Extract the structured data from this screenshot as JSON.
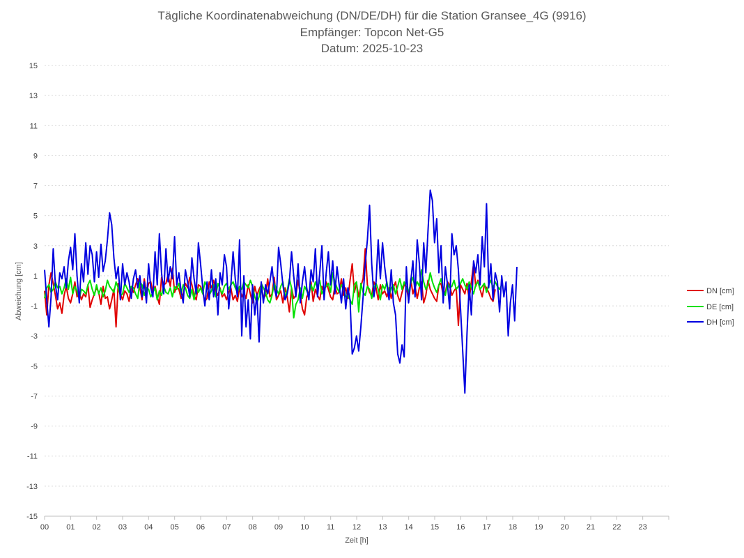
{
  "chart_data": {
    "type": "line",
    "title": [
      "Tägliche Koordinatenabweichung (DN/DE/DH) für die Station Gransee_4G (9916)",
      "Empfänger: Topcon Net-G5",
      "Datum: 2025-10-23"
    ],
    "xlabel": "Zeit [h]",
    "ylabel": "Abweichung [cm]",
    "xlim": [
      0,
      24
    ],
    "ylim": [
      -15,
      15
    ],
    "x_ticks": [
      "00",
      "01",
      "02",
      "03",
      "04",
      "05",
      "06",
      "07",
      "08",
      "09",
      "10",
      "11",
      "12",
      "13",
      "14",
      "15",
      "16",
      "17",
      "18",
      "19",
      "20",
      "21",
      "22",
      "23"
    ],
    "y_ticks": [
      15,
      13,
      11,
      9,
      7,
      5,
      3,
      1,
      -1,
      -3,
      -5,
      -7,
      -9,
      -11,
      -13,
      -15
    ],
    "legend_position": "right",
    "grid": true,
    "sample_interval_h": 0.0833,
    "series": [
      {
        "name": "DN [cm]",
        "color": "#e00000",
        "values": [
          0.0,
          -1.6,
          0.4,
          1.2,
          0.5,
          -0.3,
          -1.2,
          -0.8,
          -1.5,
          -0.3,
          0.3,
          -0.5,
          -0.8,
          -0.2,
          0.6,
          -0.4,
          -0.1,
          -0.6,
          -0.2,
          -0.4,
          0.4,
          -1.1,
          -0.6,
          -0.2,
          0.2,
          -0.1,
          -0.9,
          0.3,
          -0.5,
          -0.4,
          -1.2,
          -0.6,
          0.1,
          -2.4,
          0.5,
          -0.2,
          -0.6,
          0.0,
          -0.2,
          -0.7,
          0.3,
          -0.1,
          0.4,
          0.8,
          0.2,
          -0.6,
          0.8,
          -0.2,
          0.5,
          0.6,
          -0.1,
          0.3,
          -0.4,
          -0.9,
          0.9,
          0.4,
          0.5,
          1.1,
          0.3,
          1.5,
          -0.1,
          0.3,
          0.1,
          -0.5,
          -0.2,
          0.5,
          0.2,
          0.9,
          0.4,
          -0.3,
          -0.6,
          0.4,
          0.3,
          -0.1,
          -0.7,
          -0.5,
          0.6,
          0.2,
          0.7,
          0.0,
          -0.3,
          0.2,
          -0.4,
          -0.2,
          -0.6,
          -0.1,
          0.2,
          -0.6,
          -0.3,
          -0.7,
          0.2,
          -0.4,
          -0.1,
          -0.5,
          0.4,
          -0.2,
          -0.8,
          0.3,
          -0.3,
          0.1,
          0.4,
          -0.5,
          -0.3,
          0.8,
          -0.4,
          -0.2,
          0.9,
          -0.6,
          -0.3,
          0.0,
          -0.8,
          0.2,
          -0.4,
          -1.4,
          0.2,
          -0.5,
          -0.3,
          0.7,
          -0.2,
          -1.2,
          -1.6,
          -0.4,
          -0.1,
          0.6,
          -0.7,
          0.1,
          -0.3,
          -0.6,
          0.3,
          -0.2,
          0.6,
          0.1,
          -0.4,
          -0.6,
          0.3,
          -0.2,
          -0.1,
          0.8,
          -0.3,
          0.2,
          -0.5,
          0.7,
          1.8,
          -0.1,
          0.5,
          -0.4,
          0.3,
          0.8,
          2.8,
          0.4,
          -0.1,
          -0.3,
          0.6,
          0.2,
          -0.6,
          0.4,
          -0.2,
          0.0,
          -0.4,
          0.2,
          -0.5,
          0.2,
          0.6,
          -0.3,
          -0.7,
          -0.1,
          0.4,
          0.3,
          -0.6,
          0.8,
          -0.2,
          0.3,
          -0.5,
          0.2,
          0.6,
          -0.8,
          -0.3,
          0.7,
          0.1,
          -0.2,
          -0.5,
          -0.7,
          0.4,
          0.5,
          -0.3,
          -0.1,
          0.6,
          0.4,
          -0.3,
          0.0,
          0.2,
          -2.3,
          0.4,
          0.1,
          -0.2,
          0.5,
          -0.6,
          0.6,
          1.8,
          0.3,
          0.7,
          0.1,
          -0.4,
          0.4,
          0.2,
          -0.1,
          -0.5,
          -0.7,
          0.1
        ]
      },
      {
        "name": "DE [cm]",
        "color": "#00e000",
        "values": [
          -0.5,
          0.2,
          0.4,
          -0.1,
          0.1,
          0.6,
          0.2,
          0.3,
          -0.2,
          0.2,
          0.8,
          0.1,
          0.9,
          -0.2,
          0.3,
          0.0,
          -0.5,
          0.1,
          0.0,
          -0.2,
          0.4,
          0.7,
          0.1,
          -0.3,
          0.4,
          -0.2,
          0.2,
          -0.4,
          0.0,
          0.7,
          0.3,
          0.1,
          -0.1,
          0.6,
          0.2,
          -0.3,
          -0.2,
          0.5,
          0.2,
          -0.1,
          0.3,
          0.2,
          -0.2,
          -0.5,
          0.6,
          0.4,
          -0.3,
          0.2,
          0.1,
          -0.4,
          -0.1,
          0.2,
          -0.6,
          0.0,
          -0.3,
          0.3,
          -0.1,
          -0.2,
          0.2,
          -0.4,
          0.3,
          0.1,
          0.5,
          -0.2,
          0.4,
          0.2,
          -0.3,
          -0.5,
          0.1,
          -0.6,
          0.3,
          -0.1,
          0.2,
          -0.2,
          0.6,
          0.3,
          -0.3,
          0.0,
          0.4,
          -0.4,
          0.5,
          0.1,
          -0.2,
          0.3,
          0.5,
          0.1,
          0.4,
          0.6,
          0.2,
          -0.1,
          0.3,
          0.1,
          0.6,
          0.4,
          0.2,
          0.7,
          0.3,
          -0.4,
          -0.8,
          -0.4,
          0.5,
          0.2,
          -0.1,
          -0.6,
          -0.8,
          -0.3,
          0.5,
          0.1,
          -0.2,
          0.3,
          0.6,
          -0.4,
          0.0,
          0.8,
          0.2,
          -1.8,
          -0.9,
          -0.6,
          0.2,
          -0.5,
          0.3,
          0.0,
          -0.3,
          0.4,
          0.0,
          0.6,
          0.2,
          0.7,
          -0.2,
          0.1,
          0.3,
          0.5,
          -0.1,
          1.2,
          0.6,
          0.2,
          -0.1,
          0.4,
          0.3,
          -0.4,
          -0.3,
          -0.6,
          -0.9,
          0.4,
          0.6,
          -1.4,
          0.5,
          -0.1,
          -0.3,
          0.3,
          0.1,
          -0.5,
          0.2,
          0.5,
          0.1,
          -0.6,
          0.4,
          0.1,
          0.6,
          -0.3,
          0.2,
          0.4,
          -0.2,
          0.3,
          0.8,
          0.1,
          0.6,
          0.2,
          -0.1,
          0.5,
          0.9,
          0.2,
          0.6,
          0.3,
          1.4,
          0.6,
          0.1,
          0.4,
          1.2,
          0.6,
          0.2,
          -0.1,
          0.4,
          0.8,
          0.1,
          -0.3,
          0.5,
          0.2,
          0.3,
          0.7,
          0.1,
          0.3,
          0.5,
          0.8,
          0.4,
          0.1,
          0.6,
          0.2,
          -0.2,
          0.4,
          0.6,
          0.1,
          0.3,
          0.5,
          -0.1,
          0.4,
          0.7,
          0.2,
          0.6,
          0.3,
          0.1,
          0.4
        ]
      },
      {
        "name": "DH [cm]",
        "color": "#0000e0",
        "values": [
          1.4,
          -0.6,
          -2.4,
          -0.4,
          2.8,
          0.4,
          -0.6,
          1.2,
          0.8,
          1.6,
          0.2,
          2.0,
          2.9,
          1.4,
          3.8,
          1.0,
          -0.8,
          1.8,
          0.6,
          3.2,
          1.1,
          3.0,
          2.4,
          0.6,
          2.6,
          0.9,
          3.1,
          1.3,
          2.0,
          3.4,
          5.2,
          4.4,
          2.2,
          0.8,
          1.6,
          -0.6,
          1.8,
          0.4,
          1.2,
          0.6,
          -0.5,
          0.8,
          1.4,
          0.2,
          1.0,
          -0.4,
          0.6,
          -0.8,
          1.8,
          0.2,
          -0.4,
          2.6,
          0.4,
          3.8,
          1.2,
          -0.2,
          2.8,
          0.6,
          1.6,
          0.8,
          3.6,
          0.4,
          1.2,
          0.0,
          -0.8,
          1.4,
          0.6,
          -0.4,
          2.2,
          0.8,
          -0.2,
          3.2,
          1.8,
          0.2,
          -1.0,
          0.6,
          -0.6,
          1.4,
          -0.4,
          0.8,
          -1.6,
          1.2,
          0.4,
          2.4,
          1.6,
          -1.2,
          0.4,
          2.6,
          0.8,
          -0.4,
          3.4,
          -3.0,
          1.0,
          -2.4,
          -0.6,
          -3.2,
          0.4,
          -1.6,
          -0.2,
          -3.4,
          0.6,
          -0.8,
          0.4,
          -0.2,
          0.6,
          1.6,
          0.2,
          -0.4,
          2.9,
          1.8,
          0.4,
          -0.6,
          -0.2,
          0.6,
          2.6,
          1.0,
          -0.4,
          1.8,
          -0.8,
          0.6,
          1.6,
          0.2,
          -0.6,
          1.4,
          0.6,
          2.8,
          -0.4,
          1.2,
          3.0,
          -0.6,
          1.2,
          2.6,
          0.4,
          2.0,
          -0.2,
          1.6,
          0.4,
          -0.8,
          0.8,
          -1.2,
          0.2,
          -0.6,
          -4.2,
          -3.8,
          -3.0,
          -4.0,
          -2.4,
          -0.4,
          1.8,
          3.4,
          5.7,
          1.8,
          -0.4,
          0.6,
          3.4,
          0.8,
          3.2,
          1.6,
          0.4,
          -0.6,
          1.4,
          -0.8,
          -1.6,
          -4.2,
          -4.8,
          -3.6,
          -4.4,
          1.6,
          -0.8,
          0.6,
          2.0,
          -0.4,
          3.4,
          1.8,
          -0.6,
          3.2,
          1.2,
          4.0,
          6.7,
          6.0,
          3.2,
          4.8,
          1.2,
          3.0,
          -0.8,
          1.6,
          0.4,
          -1.2,
          3.8,
          2.4,
          3.0,
          1.4,
          -1.2,
          -4.0,
          -6.8,
          -2.8,
          0.4,
          -1.6,
          2.0,
          1.2,
          2.4,
          0.4,
          3.6,
          1.6,
          5.8,
          0.2,
          1.8,
          -0.6,
          1.2,
          0.6,
          -1.4,
          1.0,
          -0.4,
          0.6,
          -3.0,
          -0.8,
          0.4,
          -2.0,
          1.6
        ]
      }
    ]
  }
}
